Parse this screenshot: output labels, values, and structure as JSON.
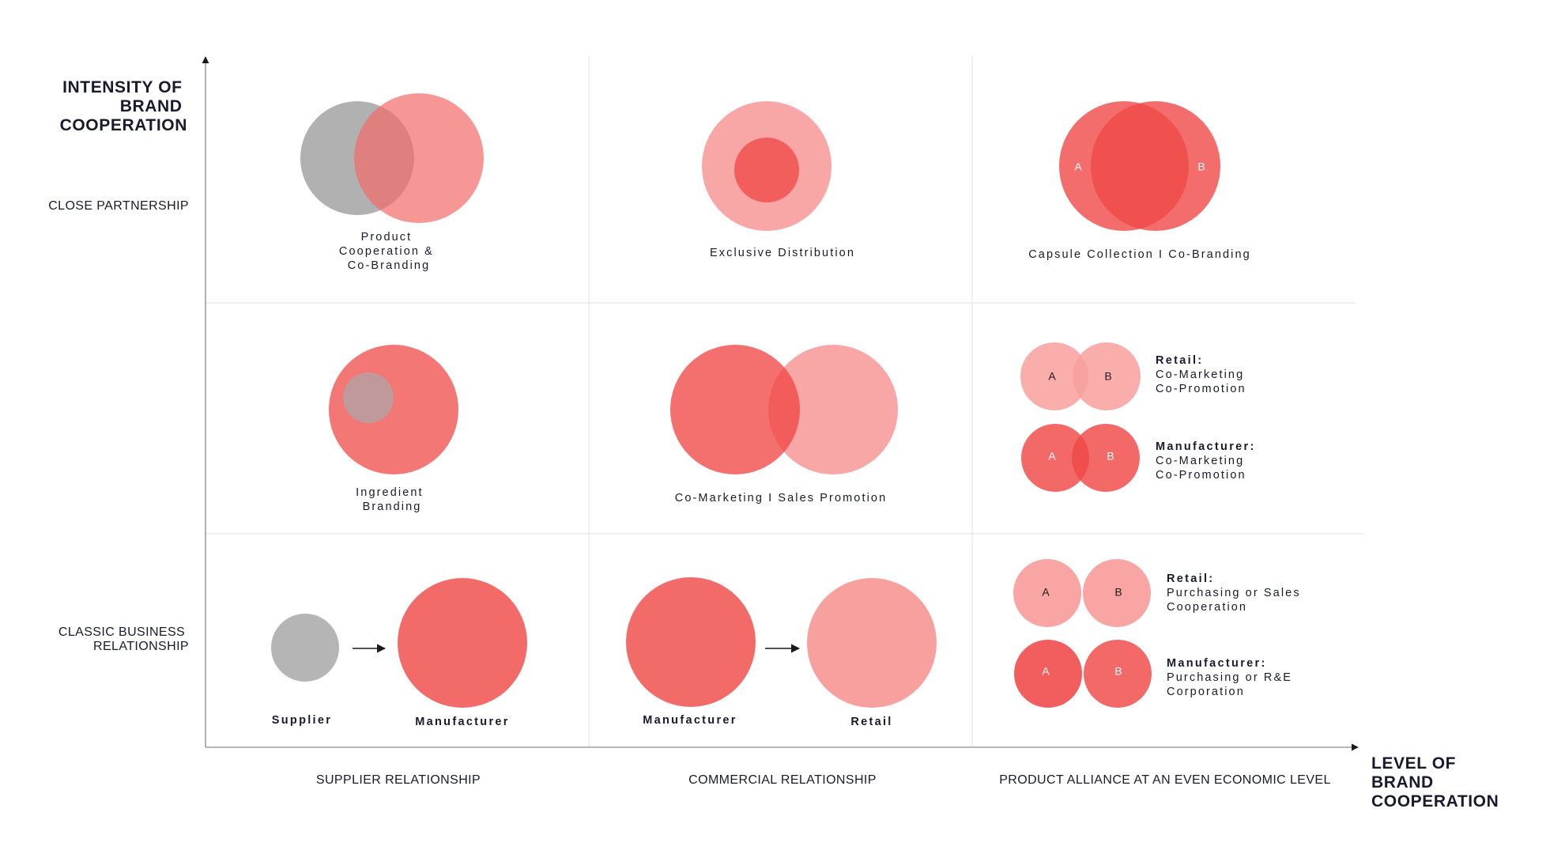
{
  "colors": {
    "gray": "#a9a9a9",
    "red": "#f26b69",
    "pink": "#f8a09e",
    "deep_red": "#ef4847",
    "text": "#1a1a2e"
  },
  "y_axis_title": [
    "INTENSITY OF",
    "BRAND",
    "COOPERATION"
  ],
  "x_axis_title": [
    "LEVEL OF",
    "BRAND",
    "COOPERATION"
  ],
  "row_labels": {
    "top": [
      "CLOSE PARTNERSHIP"
    ],
    "bottom": [
      "CLASSIC BUSINESS",
      "RELATIONSHIP"
    ]
  },
  "col_labels": {
    "col1": "SUPPLIER RELATIONSHIP",
    "col2": "COMMERCIAL RELATIONSHIP",
    "col3": "PRODUCT ALLIANCE AT AN EVEN ECONOMIC LEVEL"
  },
  "cells": {
    "product_cooperation": [
      "Product",
      "Cooperation &",
      "Co-Branding"
    ],
    "exclusive_distribution": [
      "Exclusive Distribution"
    ],
    "capsule_collection": [
      "Capsule Collection I Co-Branding"
    ],
    "ingredient_branding": [
      "Ingredient",
      "Branding"
    ],
    "co_marketing": [
      "Co-Marketing I Sales Promotion"
    ],
    "supplier": "Supplier",
    "manufacturer_1": "Manufacturer",
    "manufacturer_2": "Manufacturer",
    "retail": "Retail",
    "mid_retail": {
      "title": "Retail:",
      "lines": [
        "Co-Marketing",
        "Co-Promotion"
      ]
    },
    "mid_manufacturer": {
      "title": "Manufacturer:",
      "lines": [
        "Co-Marketing",
        "Co-Promotion"
      ]
    },
    "low_retail": {
      "title": "Retail:",
      "lines": [
        "Purchasing or Sales",
        "Cooperation"
      ]
    },
    "low_manufacturer": {
      "title": "Manufacturer:",
      "lines": [
        "Purchasing or R&E",
        "Corporation"
      ]
    }
  },
  "node_letters": {
    "a": "A",
    "b": "B"
  }
}
